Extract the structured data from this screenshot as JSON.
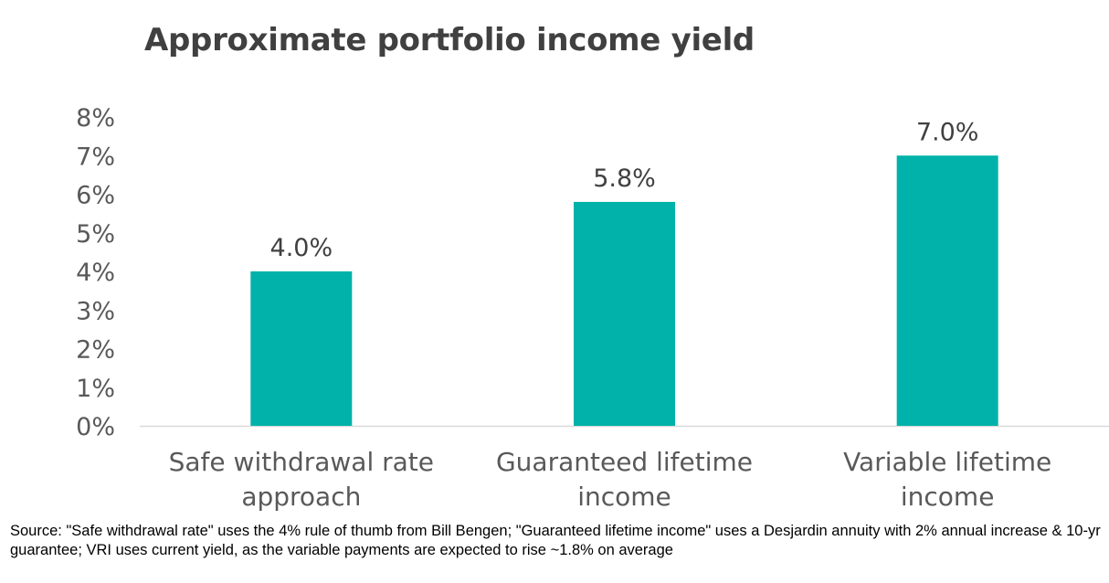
{
  "chart_data": {
    "type": "bar",
    "title": "Approximate portfolio income yield",
    "categories": [
      [
        "Safe withdrawal rate",
        "approach"
      ],
      [
        "Guaranteed lifetime",
        "income"
      ],
      [
        "Variable lifetime",
        "income"
      ]
    ],
    "values": [
      4.0,
      5.8,
      7.0
    ],
    "data_labels": [
      "4.0%",
      "5.8%",
      "7.0%"
    ],
    "ylim": [
      0,
      8
    ],
    "yticks": [
      "0%",
      "1%",
      "2%",
      "3%",
      "4%",
      "5%",
      "6%",
      "7%",
      "8%"
    ],
    "xlabel": "",
    "ylabel": "",
    "grid": false,
    "bar_color": "#00B2A9"
  },
  "source_note": "Source: \"Safe withdrawal rate\" uses the 4% rule of thumb from Bill Bengen; \"Guaranteed lifetime income\" uses a Desjardin annuity with 2% annual increase & 10-yr guarantee; VRI uses current yield, as the variable payments are expected to rise ~1.8% on average"
}
